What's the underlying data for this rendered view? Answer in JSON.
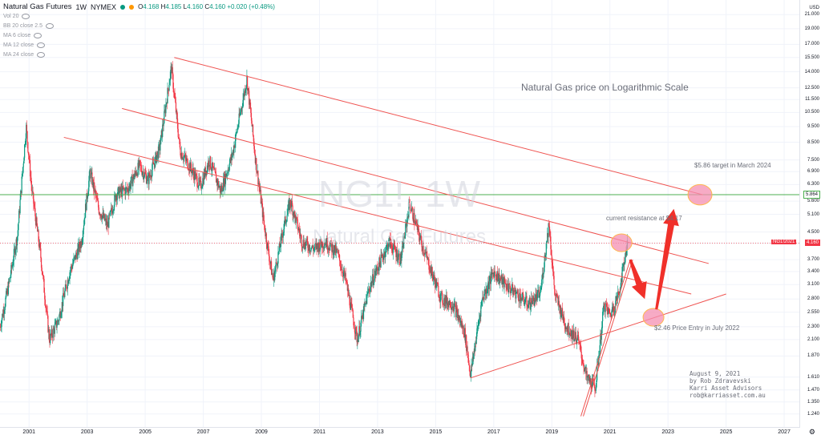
{
  "header": {
    "symbol_label": "Natural Gas Futures",
    "interval": "1W",
    "exchange": "NYMEX",
    "ohlc": {
      "open": "4.168",
      "high": "4.185",
      "low": "4.160",
      "close": "4.160",
      "change": "+0.020 (+0.48%)"
    },
    "indicators": [
      "Vol 20",
      "BB 20 close 2.5",
      "MA 6 close",
      "MA 12 close",
      "MA 24 close"
    ]
  },
  "watermark": {
    "ticker": "NG1!, 1W",
    "name": "Natural Gas Futures"
  },
  "annotations": {
    "chart_title": "Natural Gas price on Logarithmic Scale",
    "target": "$5.86 target in March 2024",
    "resistance": "current resistance at $4.17",
    "entry": "$2.46 Price Entry in July 2022",
    "credit": [
      "August 9, 2021",
      "by Rob Zdravevski",
      "Karri Asset Advisors",
      "rob@karriasset.com.au"
    ]
  },
  "axis": {
    "currency": "USD",
    "price_box": "4.160",
    "price_box_label": "NG1!2021",
    "green_line_label": "5.864"
  },
  "colors": {
    "up": "#089981",
    "down": "#f23645",
    "trend": "#ef5350",
    "green": "#4caf50",
    "pink": "#f48fb1",
    "text": "#131722",
    "annotation": "#6a6d78"
  },
  "chart_data": {
    "type": "line",
    "scale": "log",
    "x": [
      "2000",
      "2001",
      "2002",
      "2003",
      "2004",
      "2005",
      "2006",
      "2007",
      "2008",
      "2009",
      "2010",
      "2011",
      "2012",
      "2013",
      "2014",
      "2015",
      "2016",
      "2017",
      "2018",
      "2019",
      "2020",
      "2021",
      "2022",
      "2023",
      "2024",
      "2025",
      "2026",
      "2027"
    ],
    "xticks": [
      "2001",
      "2003",
      "2005",
      "2007",
      "2009",
      "2011",
      "2013",
      "2015",
      "2017",
      "2019",
      "2021",
      "2023",
      "2025",
      "2027"
    ],
    "yticks": [
      "21.000",
      "19.000",
      "17.000",
      "15.500",
      "14.000",
      "12.500",
      "11.500",
      "10.500",
      "9.500",
      "8.500",
      "7.500",
      "6.900",
      "6.300",
      "5.600",
      "5.100",
      "4.500",
      "4.160",
      "3.700",
      "3.400",
      "3.100",
      "2.800",
      "2.550",
      "2.300",
      "2.100",
      "1.870",
      "1.610",
      "1.470",
      "1.350",
      "1.240"
    ],
    "ylim": [
      1.15,
      22
    ],
    "series": [
      {
        "name": "Natural Gas Futures",
        "points": [
          [
            "2000.0",
            2.3
          ],
          [
            "2000.3",
            3.1
          ],
          [
            "2000.6",
            4.4
          ],
          [
            "2000.9",
            9.5
          ],
          [
            "2001.1",
            6.0
          ],
          [
            "2001.4",
            3.8
          ],
          [
            "2001.7",
            2.1
          ],
          [
            "2002.0",
            2.4
          ],
          [
            "2002.4",
            3.4
          ],
          [
            "2002.8",
            4.2
          ],
          [
            "2003.1",
            6.9
          ],
          [
            "2003.4",
            5.3
          ],
          [
            "2003.7",
            4.7
          ],
          [
            "2004.0",
            5.9
          ],
          [
            "2004.4",
            6.1
          ],
          [
            "2004.8",
            7.2
          ],
          [
            "2005.1",
            6.5
          ],
          [
            "2005.5",
            8.2
          ],
          [
            "2005.9",
            14.5
          ],
          [
            "2006.2",
            8.0
          ],
          [
            "2006.6",
            7.0
          ],
          [
            "2006.9",
            6.2
          ],
          [
            "2007.2",
            7.5
          ],
          [
            "2007.6",
            6.0
          ],
          [
            "2008.0",
            7.8
          ],
          [
            "2008.5",
            13.3
          ],
          [
            "2008.8",
            7.5
          ],
          [
            "2009.1",
            4.7
          ],
          [
            "2009.4",
            3.2
          ],
          [
            "2009.8",
            4.8
          ],
          [
            "2010.0",
            5.6
          ],
          [
            "2010.4",
            4.2
          ],
          [
            "2010.8",
            4.0
          ],
          [
            "2011.2",
            4.2
          ],
          [
            "2011.6",
            3.9
          ],
          [
            "2011.9",
            3.2
          ],
          [
            "2012.3",
            2.1
          ],
          [
            "2012.7",
            3.0
          ],
          [
            "2013.0",
            3.5
          ],
          [
            "2013.4",
            4.2
          ],
          [
            "2013.8",
            3.7
          ],
          [
            "2014.1",
            5.5
          ],
          [
            "2014.5",
            4.2
          ],
          [
            "2014.9",
            3.3
          ],
          [
            "2015.2",
            2.8
          ],
          [
            "2015.6",
            2.7
          ],
          [
            "2016.0",
            2.2
          ],
          [
            "2016.2",
            1.64
          ],
          [
            "2016.6",
            2.8
          ],
          [
            "2017.0",
            3.4
          ],
          [
            "2017.4",
            3.1
          ],
          [
            "2017.8",
            2.9
          ],
          [
            "2018.2",
            2.7
          ],
          [
            "2018.6",
            2.9
          ],
          [
            "2018.9",
            4.8
          ],
          [
            "2019.1",
            2.9
          ],
          [
            "2019.5",
            2.3
          ],
          [
            "2019.9",
            2.1
          ],
          [
            "2020.2",
            1.6
          ],
          [
            "2020.5",
            1.5
          ],
          [
            "2020.8",
            2.7
          ],
          [
            "2021.0",
            2.5
          ],
          [
            "2021.3",
            2.9
          ],
          [
            "2021.6",
            4.17
          ]
        ]
      }
    ],
    "trendlines": [
      {
        "from": [
          "2006.0",
          15.5
        ],
        "to": [
          "2024.2",
          5.86
        ],
        "color": "#ef5350"
      },
      {
        "from": [
          "2004.2",
          10.8
        ],
        "to": [
          "2024.4",
          3.6
        ],
        "color": "#ef5350"
      },
      {
        "from": [
          "2002.2",
          8.8
        ],
        "to": [
          "2023.8",
          2.9
        ],
        "color": "#ef5350"
      },
      {
        "from": [
          "2016.2",
          1.6
        ],
        "to": [
          "2025.0",
          2.9
        ],
        "color": "#ef5350"
      },
      {
        "from": [
          "2020.0",
          1.22
        ],
        "to": [
          "2021.7",
          3.7
        ],
        "color": "#ef5350"
      }
    ],
    "horizontal_lines": [
      {
        "y": 5.864,
        "color": "#4caf50"
      },
      {
        "y": 4.16,
        "color": "#f23645",
        "style": "dashed"
      }
    ],
    "markers": [
      {
        "x": "2024.1",
        "y": 5.86,
        "label": "target"
      },
      {
        "x": "2021.4",
        "y": 4.17,
        "label": "resistance"
      },
      {
        "x": "2022.5",
        "y": 2.46,
        "label": "entry"
      }
    ],
    "arrows": [
      {
        "from": [
          "2021.7",
          3.7
        ],
        "to": [
          "2022.2",
          2.8
        ]
      },
      {
        "from": [
          "2022.6",
          2.6
        ],
        "to": [
          "2023.2",
          5.3
        ]
      }
    ]
  }
}
